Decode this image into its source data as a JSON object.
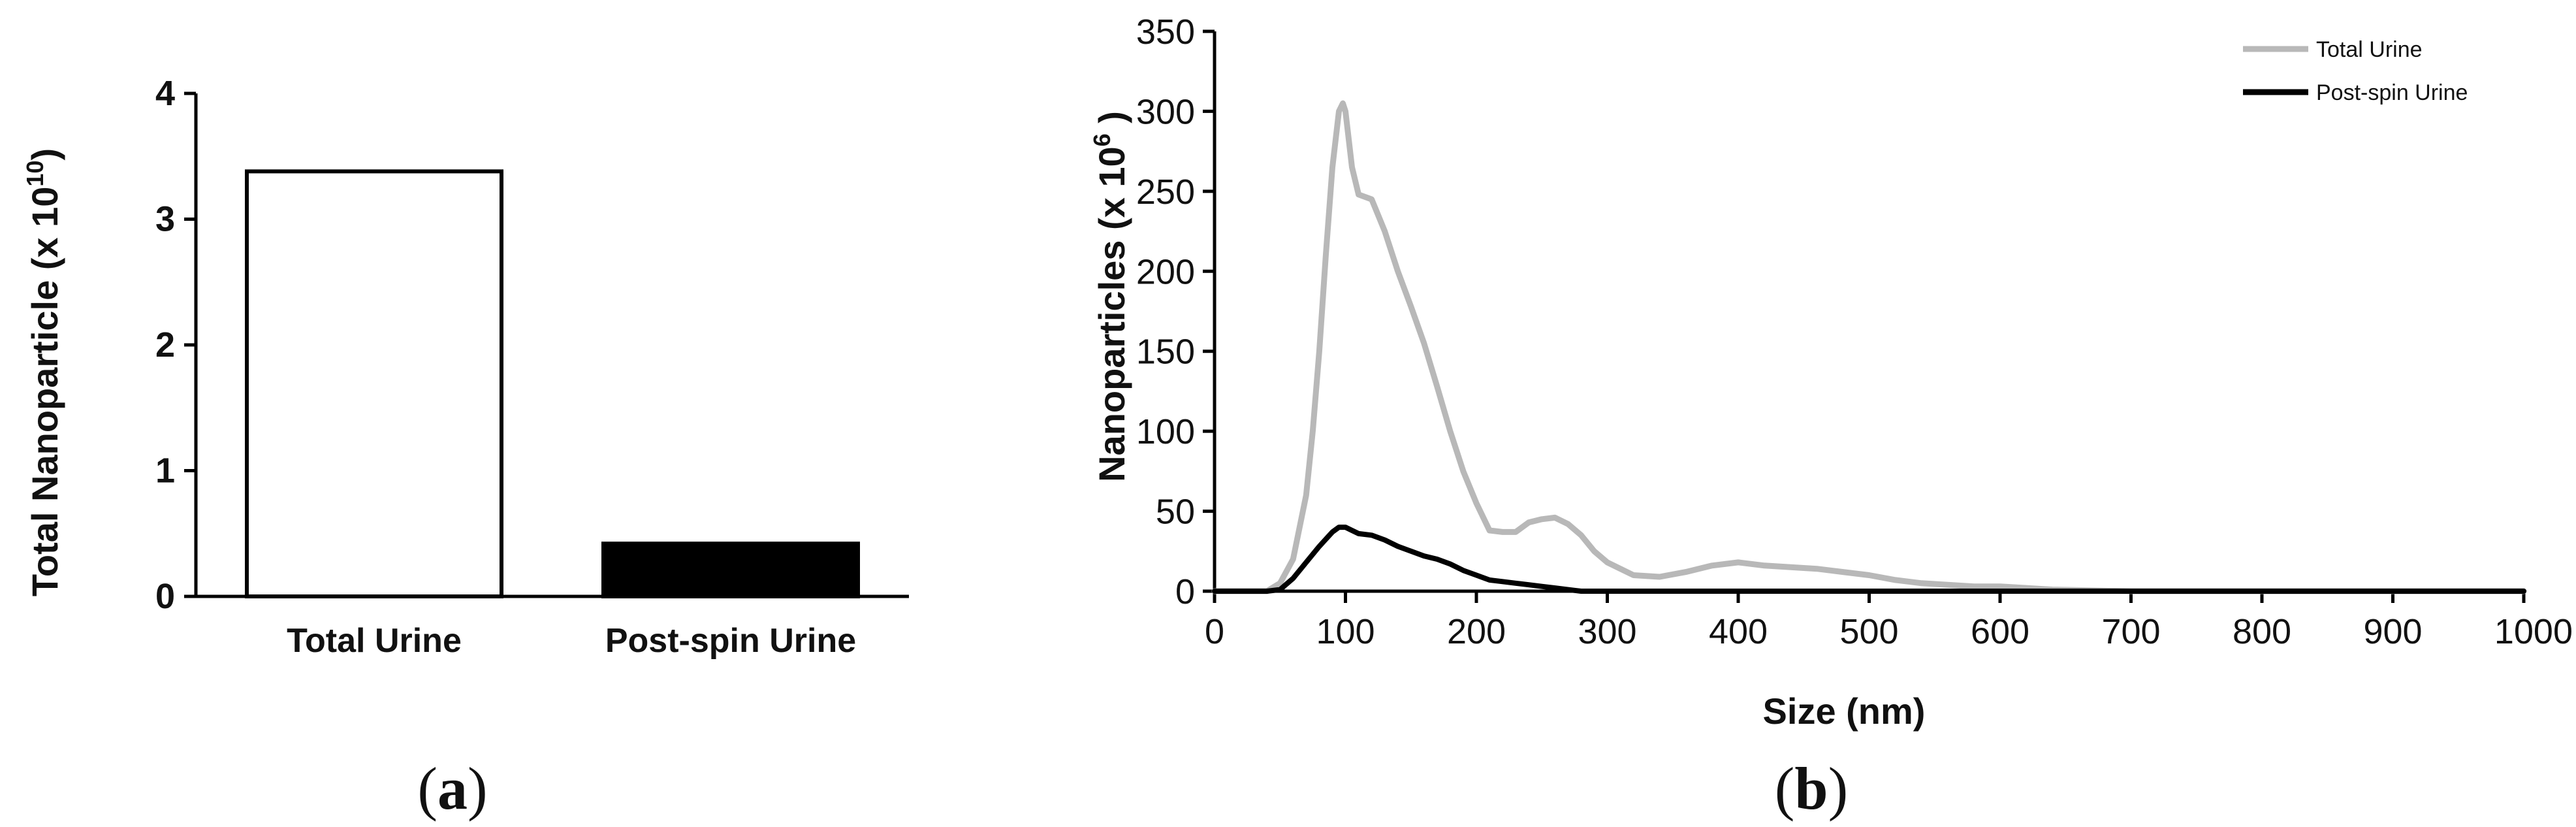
{
  "chart_data": [
    {
      "type": "bar",
      "panel_label": "a",
      "ylabel": "Total Nanoparticle (x 10",
      "ylabel_exp": "10",
      "ylabel_close": ")",
      "ylim": [
        0,
        4
      ],
      "yticks": [
        "0",
        "1",
        "2",
        "3",
        "4"
      ],
      "categories": [
        "Total Urine",
        "Post-spin Urine"
      ],
      "values": [
        3.38,
        0.42
      ],
      "colors": [
        "#ffffff",
        "#000000"
      ],
      "grid": false
    },
    {
      "type": "line",
      "panel_label": "b",
      "xlabel": "Size (nm)",
      "ylabel": "Nanoparticles (x 10",
      "ylabel_exp": "6",
      "ylabel_close": " )",
      "xlim": [
        0,
        1000
      ],
      "ylim": [
        0,
        350
      ],
      "xticks": [
        "0",
        "100",
        "200",
        "300",
        "400",
        "500",
        "600",
        "700",
        "800",
        "900",
        "1000"
      ],
      "yticks": [
        "0",
        "50",
        "100",
        "150",
        "200",
        "250",
        "300",
        "350"
      ],
      "legend_position": "top-right",
      "grid": false,
      "series": [
        {
          "name": "Total Urine",
          "color": "#b8b8b8",
          "x": [
            0,
            40,
            50,
            60,
            70,
            75,
            80,
            85,
            90,
            95,
            98,
            100,
            105,
            110,
            120,
            130,
            140,
            150,
            160,
            170,
            180,
            190,
            200,
            210,
            220,
            230,
            240,
            250,
            260,
            270,
            280,
            290,
            300,
            320,
            340,
            360,
            380,
            400,
            420,
            440,
            460,
            480,
            500,
            520,
            540,
            560,
            580,
            600,
            620,
            640,
            700,
            800,
            900,
            1000
          ],
          "y": [
            0,
            0,
            5,
            20,
            60,
            100,
            150,
            210,
            265,
            300,
            305,
            300,
            265,
            248,
            245,
            225,
            200,
            178,
            155,
            128,
            100,
            75,
            55,
            38,
            37,
            37,
            43,
            45,
            46,
            42,
            35,
            25,
            18,
            10,
            9,
            12,
            16,
            18,
            16,
            15,
            14,
            12,
            10,
            7,
            5,
            4,
            3,
            3,
            2,
            1,
            0,
            0,
            0,
            0
          ]
        },
        {
          "name": "Post-spin Urine",
          "color": "#000000",
          "x": [
            0,
            40,
            50,
            60,
            70,
            80,
            90,
            95,
            100,
            105,
            110,
            120,
            130,
            140,
            150,
            160,
            170,
            180,
            190,
            200,
            210,
            220,
            230,
            240,
            250,
            260,
            270,
            280,
            290,
            300,
            400,
            500,
            600,
            700,
            800,
            900,
            1000
          ],
          "y": [
            0,
            0,
            1,
            8,
            18,
            28,
            37,
            40,
            40,
            38,
            36,
            35,
            32,
            28,
            25,
            22,
            20,
            17,
            13,
            10,
            7,
            6,
            5,
            4,
            3,
            2,
            1,
            0,
            0,
            0,
            0,
            0,
            0,
            0,
            0,
            0,
            0
          ]
        }
      ]
    }
  ]
}
